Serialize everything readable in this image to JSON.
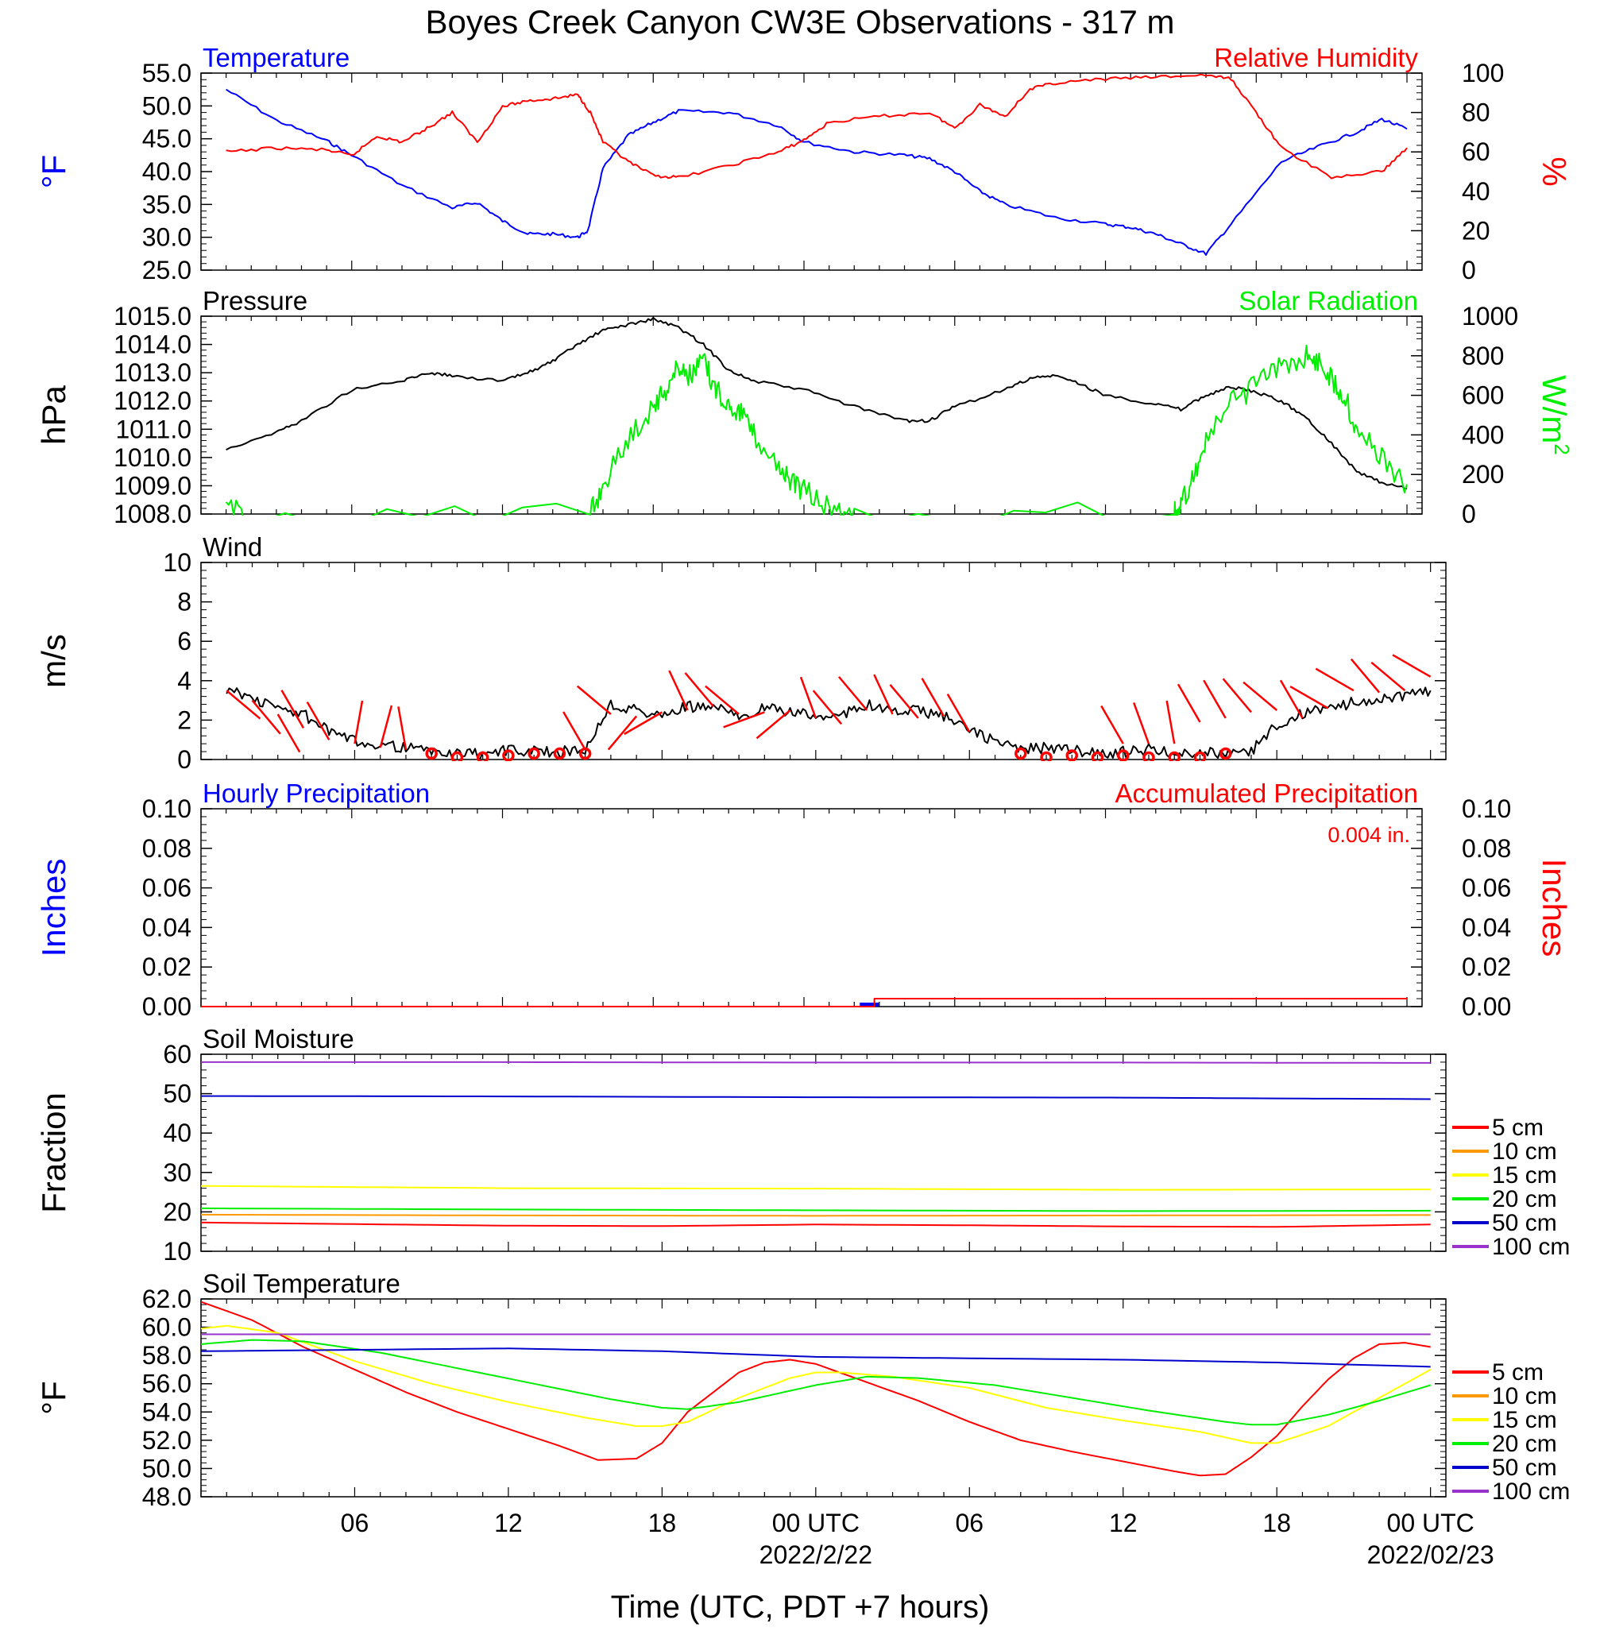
{
  "title": "Boyes Creek Canyon CW3E Observations - 317 m",
  "xaxis": {
    "title": "Time (UTC, PDT +7 hours)",
    "ticks": [
      "06",
      "12",
      "18",
      "00 UTC",
      "06",
      "12",
      "18",
      "00 UTC"
    ],
    "dates": [
      "2022/2/22",
      "2022/02/23"
    ]
  },
  "colors": {
    "blue": "#0000ff",
    "red": "#ff0000",
    "green": "#00ee00",
    "black": "#000000"
  },
  "chart_data": [
    {
      "type": "line",
      "left_title": "Temperature",
      "right_title": "Relative Humidity",
      "ylabel_left": "°F",
      "ylabel_right": "%",
      "ylim_left": [
        25,
        55
      ],
      "ylim_right": [
        0,
        100
      ],
      "yticks_left": [
        "55.0",
        "50.0",
        "45.0",
        "40.0",
        "35.0",
        "30.0",
        "25.0"
      ],
      "yticks_right": [
        "100",
        "80",
        "60",
        "40",
        "20",
        "0"
      ],
      "series": [
        {
          "axis": "left",
          "color": "#0000ff",
          "x": [
            1,
            3,
            5,
            6,
            8,
            10,
            11,
            12,
            13,
            14,
            15,
            15.4,
            16,
            17,
            18,
            19,
            21,
            23,
            24,
            26,
            28,
            29,
            30,
            31,
            32,
            34,
            36,
            37,
            38,
            39,
            40,
            41,
            43,
            44.6,
            46,
            47,
            48
          ],
          "y": [
            52.5,
            47.8,
            44.7,
            42.5,
            37.9,
            34.5,
            35.3,
            32.5,
            30.5,
            30.5,
            30.0,
            31,
            40.5,
            45.5,
            47.5,
            49.2,
            49,
            47,
            44.5,
            43,
            42.5,
            42,
            40,
            37,
            35,
            33,
            32,
            31.5,
            30.5,
            29,
            27.5,
            32,
            41.5,
            44,
            46,
            48,
            46.5
          ]
        },
        {
          "axis": "right",
          "color": "#ff0000",
          "x": [
            1,
            3,
            5,
            6,
            7,
            8,
            9,
            10,
            11,
            12,
            13,
            14,
            15,
            15.5,
            16,
            17,
            18,
            19,
            21,
            23,
            24,
            25,
            27,
            29,
            30,
            31,
            32,
            33,
            34,
            36,
            38,
            40,
            41,
            42,
            43,
            45,
            47,
            48
          ],
          "y": [
            60,
            62,
            61,
            58,
            68,
            65,
            72,
            80,
            65,
            83,
            86,
            87,
            89,
            80,
            65,
            55,
            48,
            47,
            53,
            60,
            66,
            75,
            78,
            80,
            72,
            84,
            78,
            92,
            95,
            97,
            98,
            99,
            97,
            80,
            62,
            47,
            50,
            62
          ]
        }
      ]
    },
    {
      "type": "line",
      "left_title": "Pressure",
      "right_title": "Solar Radiation",
      "ylabel_left": "hPa",
      "ylabel_right": "W/m",
      "ylabel_right_sup": "2",
      "ylim_left": [
        1008,
        1015
      ],
      "ylim_right": [
        0,
        1000
      ],
      "yticks_left": [
        "1015.0",
        "1014.0",
        "1013.0",
        "1012.0",
        "1011.0",
        "1010.0",
        "1009.0",
        "1008.0"
      ],
      "yticks_right": [
        "1000",
        "800",
        "600",
        "400",
        "200",
        "0"
      ],
      "series": [
        {
          "axis": "left",
          "color": "#000000",
          "x": [
            1,
            3,
            4,
            6,
            8,
            9,
            10,
            12,
            13,
            14,
            15,
            16,
            17,
            18,
            19,
            20,
            21,
            22,
            24,
            26,
            28,
            29,
            30,
            32,
            33,
            34,
            35,
            36,
            38,
            39,
            40,
            41,
            42,
            43,
            44,
            45,
            46,
            47,
            48
          ],
          "y": [
            1010.3,
            1010.9,
            1011.3,
            1012.4,
            1012.7,
            1013.0,
            1012.9,
            1012.7,
            1013.0,
            1013.4,
            1014.0,
            1014.5,
            1014.7,
            1014.9,
            1014.6,
            1014.0,
            1013.1,
            1012.7,
            1012.4,
            1011.8,
            1011.3,
            1011.3,
            1011.8,
            1012.4,
            1012.8,
            1012.9,
            1012.6,
            1012.2,
            1011.9,
            1011.7,
            1012.2,
            1012.5,
            1012.3,
            1012.0,
            1011.4,
            1010.5,
            1009.5,
            1009.1,
            1008.9
          ]
        },
        {
          "axis": "right",
          "color": "#00ee00",
          "x": [
            1,
            2,
            15.5,
            16,
            17,
            18,
            18.5,
            19,
            19.5,
            20,
            20.5,
            21,
            21.5,
            22,
            23,
            23.5,
            24,
            25,
            26,
            38.7,
            39,
            39.5,
            40,
            41,
            42,
            43,
            44,
            44.5,
            45,
            45.5,
            46,
            47,
            48
          ],
          "y": [
            30,
            0,
            0,
            150,
            380,
            550,
            630,
            750,
            700,
            780,
            620,
            560,
            520,
            400,
            250,
            150,
            120,
            30,
            0,
            0,
            30,
            200,
            360,
            560,
            650,
            740,
            800,
            770,
            690,
            600,
            420,
            280,
            150
          ]
        }
      ]
    },
    {
      "type": "line",
      "left_title": "Wind",
      "ylabel_left": "m/s",
      "ylim_left": [
        0,
        10
      ],
      "yticks_left": [
        "10",
        "8",
        "6",
        "4",
        "2",
        "0"
      ],
      "series": [
        {
          "axis": "left",
          "color": "#000000",
          "x": [
            1,
            2,
            3,
            4,
            5,
            6,
            7,
            8,
            9,
            10,
            11,
            12,
            13,
            14,
            15,
            16,
            17,
            18,
            19,
            20,
            21,
            22,
            23,
            24,
            25,
            26,
            27,
            28,
            29,
            30,
            31,
            32,
            33,
            34,
            35,
            36,
            37,
            38,
            39,
            40,
            41,
            42,
            43,
            44,
            45,
            46,
            47,
            48
          ],
          "y": [
            3.6,
            3.1,
            2.6,
            2.3,
            1.4,
            0.9,
            0.8,
            0.6,
            0.4,
            0.3,
            0.3,
            0.5,
            0.4,
            0.4,
            0.5,
            2.8,
            2.5,
            2.2,
            2.7,
            2.6,
            2.3,
            2.6,
            2.4,
            2.2,
            2.3,
            2.8,
            2.4,
            2.5,
            2.2,
            1.5,
            0.9,
            0.5,
            0.6,
            0.5,
            0.3,
            0.4,
            0.5,
            0.3,
            0.4,
            0.3,
            0.4,
            1.8,
            2.3,
            2.6,
            2.9,
            3.1,
            3.2,
            3.5
          ]
        }
      ]
    },
    {
      "type": "line",
      "left_title": "Hourly Precipitation",
      "right_title": "Accumulated Precipitation",
      "annotation": "0.004 in.",
      "ylabel_left": "Inches",
      "ylabel_right": "Inches",
      "ylim_left": [
        0,
        0.1
      ],
      "ylim_right": [
        0,
        0.1
      ],
      "yticks_left": [
        "0.10",
        "0.08",
        "0.06",
        "0.04",
        "0.02",
        "0.00"
      ],
      "yticks_right": [
        "0.10",
        "0.08",
        "0.06",
        "0.04",
        "0.02",
        "0.00"
      ],
      "series": [
        {
          "axis": "right",
          "color": "#ff0000",
          "x": [
            0,
            26.8,
            26.8,
            48
          ],
          "y": [
            0,
            0,
            0.004,
            0.004
          ]
        }
      ],
      "bars": {
        "color": "#0000ff",
        "x": [
          26.6
        ],
        "values": [
          0.002
        ]
      }
    },
    {
      "type": "line",
      "left_title": "Soil Moisture",
      "ylabel_left": "Fraction",
      "ylim_left": [
        10,
        60
      ],
      "yticks_left": [
        "60",
        "50",
        "40",
        "30",
        "20",
        "10"
      ],
      "legend_position": "right",
      "series": [
        {
          "name": "5 cm",
          "color": "#ff0000",
          "x": [
            0,
            6,
            12,
            18,
            24,
            30,
            36,
            42,
            48
          ],
          "y": [
            17.3,
            16.9,
            16.5,
            16.4,
            16.8,
            16.6,
            16.3,
            16.2,
            16.8
          ]
        },
        {
          "name": "10 cm",
          "color": "#ff9900",
          "x": [
            0,
            12,
            24,
            36,
            48
          ],
          "y": [
            19.3,
            19.1,
            19.0,
            19.1,
            19.2
          ]
        },
        {
          "name": "15 cm",
          "color": "#ffff00",
          "x": [
            0,
            12,
            24,
            36,
            48
          ],
          "y": [
            26.6,
            26.0,
            25.9,
            25.6,
            25.7
          ]
        },
        {
          "name": "20 cm",
          "color": "#00ee00",
          "x": [
            0,
            12,
            24,
            36,
            48
          ],
          "y": [
            20.9,
            20.6,
            20.4,
            20.2,
            20.3
          ]
        },
        {
          "name": "50 cm",
          "color": "#0000cc",
          "x": [
            0,
            12,
            24,
            36,
            48
          ],
          "y": [
            49.4,
            49.3,
            49.1,
            49.0,
            48.6
          ]
        },
        {
          "name": "100 cm",
          "color": "#9933cc",
          "x": [
            0,
            12,
            24,
            36,
            48
          ],
          "y": [
            58.0,
            58.0,
            57.9,
            57.9,
            57.8
          ]
        }
      ]
    },
    {
      "type": "line",
      "left_title": "Soil Temperature",
      "ylabel_left": "°F",
      "ylim_left": [
        48,
        62
      ],
      "yticks_left": [
        "62.0",
        "60.0",
        "58.0",
        "56.0",
        "54.0",
        "52.0",
        "50.0",
        "48.0"
      ],
      "legend_position": "right",
      "series": [
        {
          "name": "5 cm",
          "color": "#ff0000",
          "x": [
            0,
            2,
            4,
            6,
            8,
            10,
            12,
            14,
            15.5,
            17,
            18,
            19,
            20,
            21,
            22,
            23,
            24,
            26,
            28,
            30,
            32,
            34,
            36,
            38,
            39,
            40,
            41,
            42,
            43,
            44,
            45,
            46,
            47,
            48
          ],
          "y": [
            61.8,
            60.5,
            58.6,
            57.0,
            55.4,
            54.0,
            52.8,
            51.6,
            50.6,
            50.7,
            51.8,
            54.0,
            55.4,
            56.8,
            57.5,
            57.7,
            57.4,
            56.1,
            54.8,
            53.3,
            52.0,
            51.2,
            50.5,
            49.8,
            49.5,
            49.6,
            50.8,
            52.3,
            54.4,
            56.3,
            57.8,
            58.8,
            58.9,
            58.6
          ]
        },
        {
          "name": "10 cm",
          "color": "#ff9900",
          "x": [
            0,
            48
          ],
          "y": [
            null,
            null
          ]
        },
        {
          "name": "15 cm",
          "color": "#ffff00",
          "x": [
            0,
            1,
            3,
            6,
            9,
            12,
            15,
            17,
            18,
            19,
            21,
            23,
            24,
            25,
            27,
            30,
            33,
            36,
            39,
            41,
            42,
            44,
            46,
            48
          ],
          "y": [
            59.9,
            60.1,
            59.6,
            57.6,
            56.0,
            54.7,
            53.6,
            53.0,
            53.0,
            53.3,
            55.0,
            56.4,
            56.8,
            56.8,
            56.5,
            55.7,
            54.3,
            53.4,
            52.6,
            51.8,
            51.8,
            53.0,
            55.0,
            57.0
          ]
        },
        {
          "name": "20 cm",
          "color": "#00ee00",
          "x": [
            0,
            2,
            4,
            7,
            10,
            13,
            16,
            18,
            19,
            21,
            24,
            26,
            28,
            31,
            34,
            37,
            40,
            41,
            42,
            44,
            46,
            48
          ],
          "y": [
            58.8,
            59.1,
            59.0,
            58.2,
            57.1,
            56.0,
            54.9,
            54.3,
            54.2,
            54.7,
            55.9,
            56.5,
            56.4,
            55.9,
            55.0,
            54.1,
            53.3,
            53.1,
            53.1,
            53.8,
            54.8,
            55.9
          ]
        },
        {
          "name": "50 cm",
          "color": "#0000cc",
          "x": [
            0,
            6,
            12,
            18,
            24,
            30,
            36,
            42,
            48
          ],
          "y": [
            58.3,
            58.4,
            58.5,
            58.3,
            57.9,
            57.8,
            57.7,
            57.5,
            57.2
          ]
        },
        {
          "name": "100 cm",
          "color": "#9933cc",
          "x": [
            0,
            12,
            24,
            36,
            48
          ],
          "y": [
            59.5,
            59.5,
            59.5,
            59.5,
            59.5
          ]
        }
      ]
    }
  ],
  "wind_barbs": {
    "color": "#ff0000",
    "hours": [
      1,
      2,
      3,
      4,
      5,
      6,
      7,
      8,
      15,
      16,
      17,
      18,
      19,
      20,
      21,
      22,
      23,
      24,
      25,
      26,
      27,
      28,
      29,
      30,
      36,
      37,
      38,
      39,
      40,
      41,
      42,
      43,
      44,
      45,
      46,
      47,
      48
    ],
    "speed": [
      3.5,
      3.0,
      2.3,
      1.6,
      1.0,
      0.8,
      0.6,
      0.5,
      0.5,
      2.3,
      2.2,
      2.4,
      2.5,
      2.7,
      2.3,
      2.4,
      2.5,
      2.1,
      1.8,
      2.5,
      2.3,
      2.1,
      2.2,
      1.4,
      0.8,
      0.8,
      0.8,
      1.9,
      2.1,
      2.4,
      2.5,
      2.1,
      2.6,
      3.5,
      3.4,
      3.5,
      4.2
    ],
    "direction_deg": [
      130,
      140,
      150,
      330,
      330,
      10,
      15,
      350,
      330,
      310,
      220,
      240,
      335,
      320,
      310,
      250,
      230,
      340,
      320,
      320,
      335,
      320,
      330,
      330,
      330,
      340,
      350,
      330,
      330,
      320,
      310,
      330,
      300,
      300,
      320,
      310,
      300
    ],
    "calm_hours": [
      9,
      10,
      11,
      12,
      13,
      14,
      15,
      32,
      33,
      34,
      35,
      36,
      37,
      38,
      39,
      40
    ],
    "calm_speed": [
      0.3,
      0.1,
      0.1,
      0.2,
      0.3,
      0.3,
      0.3,
      0.3,
      0.1,
      0.2,
      0.1,
      0.2,
      0.1,
      0.1,
      0.1,
      0.3
    ]
  }
}
